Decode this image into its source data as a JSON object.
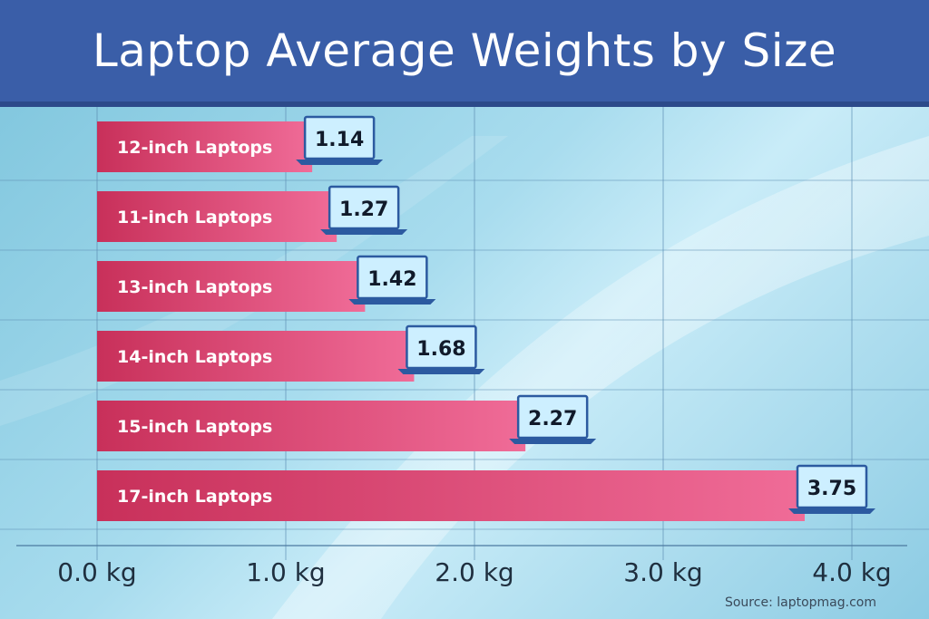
{
  "chart_data": {
    "type": "bar",
    "orientation": "horizontal",
    "title": "Laptop Average Weights by Size",
    "categories": [
      "12-inch Laptops",
      "11-inch Laptops",
      "13-inch Laptops",
      "14-inch Laptops",
      "15-inch Laptops",
      "17-inch Laptops"
    ],
    "values": [
      1.14,
      1.27,
      1.42,
      1.68,
      2.27,
      3.75
    ],
    "value_labels": [
      "1.14",
      "1.27",
      "1.42",
      "1.68",
      "2.27",
      "3.75"
    ],
    "xticks": [
      0,
      1,
      2,
      3,
      4
    ],
    "xtick_labels": [
      "0.0 kg",
      "1.0 kg",
      "2.0 kg",
      "3.0 kg",
      "4.0 kg"
    ],
    "xlim": [
      0,
      4
    ],
    "xlabel": "",
    "ylabel": "",
    "grid": true,
    "source": "Source: laptopmag.com",
    "colors": {
      "header": "#3a5ea8",
      "bar_start": "#c8305a",
      "bar_end": "#f06c98",
      "laptop_screen": "#cdefff",
      "laptop_frame": "#2c5aa0"
    }
  }
}
